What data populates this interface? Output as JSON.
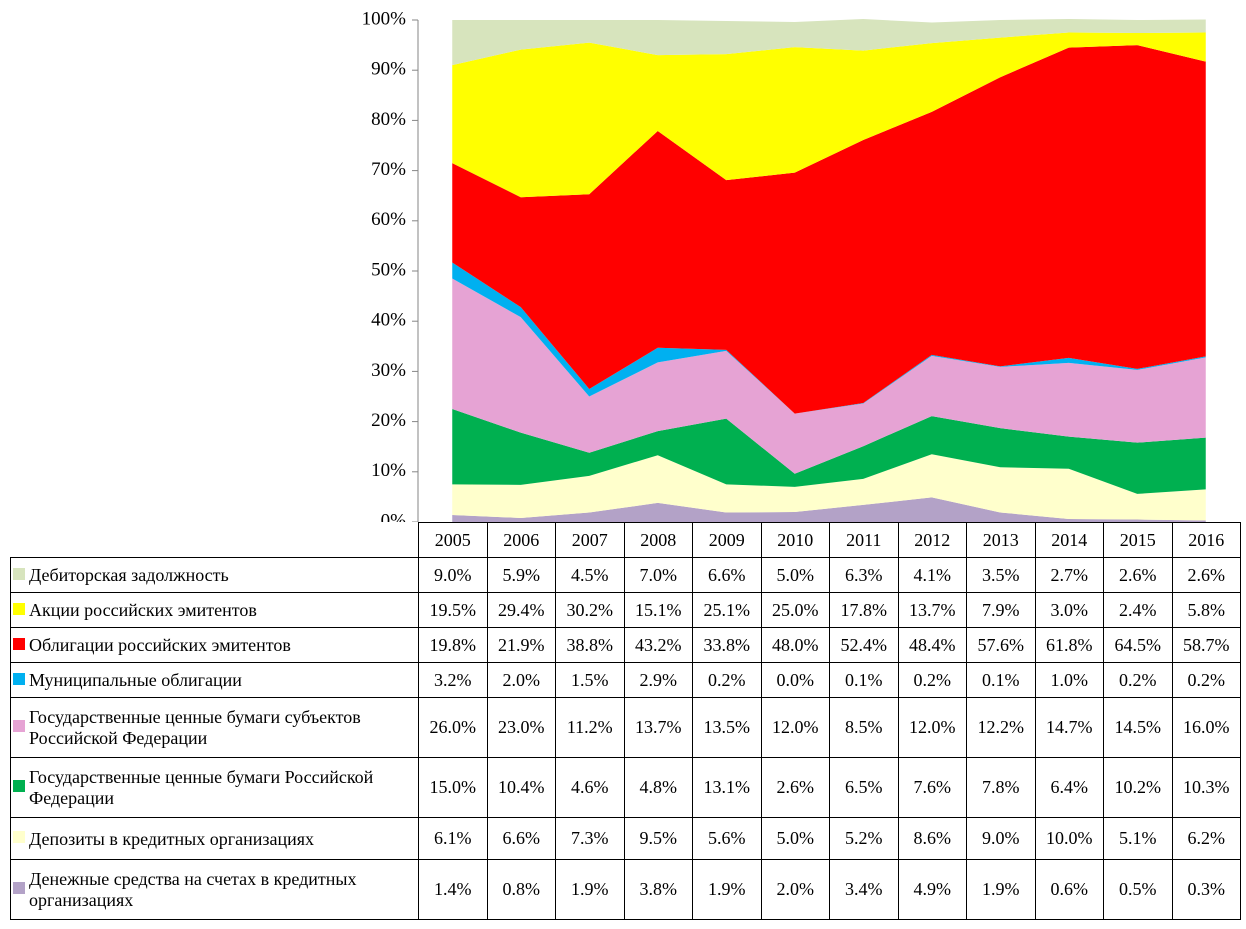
{
  "chart_data": {
    "type": "stacked-area",
    "categories": [
      "2005",
      "2006",
      "2007",
      "2008",
      "2009",
      "2010",
      "2011",
      "2012",
      "2013",
      "2014",
      "2015",
      "2016"
    ],
    "ylim": [
      0,
      100
    ],
    "yticks": [
      {
        "value": 0,
        "label": "0%"
      },
      {
        "value": 10,
        "label": "10%"
      },
      {
        "value": 20,
        "label": "20%"
      },
      {
        "value": 30,
        "label": "30%"
      },
      {
        "value": 40,
        "label": "40%"
      },
      {
        "value": 50,
        "label": "50%"
      },
      {
        "value": 60,
        "label": "60%"
      },
      {
        "value": 70,
        "label": "70%"
      },
      {
        "value": 80,
        "label": "80%"
      },
      {
        "value": 90,
        "label": "90%"
      },
      {
        "value": 100,
        "label": "100%"
      }
    ],
    "series": [
      {
        "name": "Дебиторская задолжность",
        "color": "#d7e4bd",
        "values": [
          9.0,
          5.9,
          4.5,
          7.0,
          6.6,
          5.0,
          6.3,
          4.1,
          3.5,
          2.7,
          2.6,
          2.6
        ],
        "value_labels": [
          "9.0%",
          "5.9%",
          "4.5%",
          "7.0%",
          "6.6%",
          "5.0%",
          "6.3%",
          "4.1%",
          "3.5%",
          "2.7%",
          "2.6%",
          "2.6%"
        ]
      },
      {
        "name": "Акции российских эмитентов",
        "color": "#ffff00",
        "values": [
          19.5,
          29.4,
          30.2,
          15.1,
          25.1,
          25.0,
          17.8,
          13.7,
          7.9,
          3.0,
          2.4,
          5.8
        ],
        "value_labels": [
          "19.5%",
          "29.4%",
          "30.2%",
          "15.1%",
          "25.1%",
          "25.0%",
          "17.8%",
          "13.7%",
          "7.9%",
          "3.0%",
          "2.4%",
          "5.8%"
        ]
      },
      {
        "name": "Облигации российских эмитентов",
        "color": "#ff0000",
        "values": [
          19.8,
          21.9,
          38.8,
          43.2,
          33.8,
          48.0,
          52.4,
          48.4,
          57.6,
          61.8,
          64.5,
          58.7
        ],
        "value_labels": [
          "19.8%",
          "21.9%",
          "38.8%",
          "43.2%",
          "33.8%",
          "48.0%",
          "52.4%",
          "48.4%",
          "57.6%",
          "61.8%",
          "64.5%",
          "58.7%"
        ]
      },
      {
        "name": "Муниципальные облигации",
        "color": "#00b0f0",
        "values": [
          3.2,
          2.0,
          1.5,
          2.9,
          0.2,
          0.0,
          0.1,
          0.2,
          0.1,
          1.0,
          0.2,
          0.2
        ],
        "value_labels": [
          "3.2%",
          "2.0%",
          "1.5%",
          "2.9%",
          "0.2%",
          "0.0%",
          "0.1%",
          "0.2%",
          "0.1%",
          "1.0%",
          "0.2%",
          "0.2%"
        ]
      },
      {
        "name": "Государственные ценные бумаги субъектов Российской Федерации",
        "color": "#e6a3d4",
        "values": [
          26.0,
          23.0,
          11.2,
          13.7,
          13.5,
          12.0,
          8.5,
          12.0,
          12.2,
          14.7,
          14.5,
          16.0
        ],
        "value_labels": [
          "26.0%",
          "23.0%",
          "11.2%",
          "13.7%",
          "13.5%",
          "12.0%",
          "8.5%",
          "12.0%",
          "12.2%",
          "14.7%",
          "14.5%",
          "16.0%"
        ]
      },
      {
        "name": "Государственные ценные бумаги Российской Федерации",
        "color": "#00b050",
        "values": [
          15.0,
          10.4,
          4.6,
          4.8,
          13.1,
          2.6,
          6.5,
          7.6,
          7.8,
          6.4,
          10.2,
          10.3
        ],
        "value_labels": [
          "15.0%",
          "10.4%",
          "4.6%",
          "4.8%",
          "13.1%",
          "2.6%",
          "6.5%",
          "7.6%",
          "7.8%",
          "6.4%",
          "10.2%",
          "10.3%"
        ]
      },
      {
        "name": "Депозиты в кредитных организациях",
        "color": "#ffffcc",
        "values": [
          6.1,
          6.6,
          7.3,
          9.5,
          5.6,
          5.0,
          5.2,
          8.6,
          9.0,
          10.0,
          5.1,
          6.2
        ],
        "value_labels": [
          "6.1%",
          "6.6%",
          "7.3%",
          "9.5%",
          "5.6%",
          "5.0%",
          "5.2%",
          "8.6%",
          "9.0%",
          "10.0%",
          "5.1%",
          "6.2%"
        ]
      },
      {
        "name": "Денежные средства на счетах в кредитных организациях",
        "color": "#b3a2c7",
        "values": [
          1.4,
          0.8,
          1.9,
          3.8,
          1.9,
          2.0,
          3.4,
          4.9,
          1.9,
          0.6,
          0.5,
          0.3
        ],
        "value_labels": [
          "1.4%",
          "0.8%",
          "1.9%",
          "3.8%",
          "1.9%",
          "2.0%",
          "3.4%",
          "4.9%",
          "1.9%",
          "0.6%",
          "0.5%",
          "0.3%"
        ]
      }
    ]
  }
}
